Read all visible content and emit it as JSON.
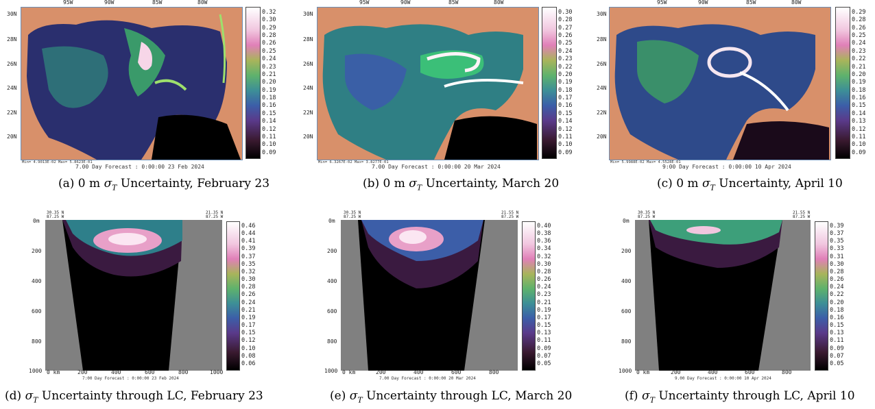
{
  "panels": [
    {
      "id": "a",
      "caption_prefix": "(a) 0 m",
      "caption_suffix": "Uncertainty, February 23",
      "footer": "7.00 Day Forecast :  0:00:00  23 Feb 2024",
      "minmax": "Min= 4.9013E-02  Max= 5.8623E-01",
      "cbar": [
        "0.32",
        "0.30",
        "0.29",
        "0.28",
        "0.26",
        "0.25",
        "0.24",
        "0.23",
        "0.21",
        "0.20",
        "0.19",
        "0.18",
        "0.16",
        "0.15",
        "0.14",
        "0.12",
        "0.11",
        "0.10",
        "0.09"
      ]
    },
    {
      "id": "b",
      "caption_prefix": "(b) 0 m",
      "caption_suffix": "Uncertainty, March 20",
      "footer": "7.00 Day Forecast :  0:00:00  20 Mar 2024",
      "minmax": "Min= 6.3267E-02  Max= 3.8277E-01",
      "cbar": [
        "0.30",
        "0.28",
        "0.27",
        "0.26",
        "0.25",
        "0.24",
        "0.23",
        "0.22",
        "0.20",
        "0.19",
        "0.18",
        "0.17",
        "0.16",
        "0.15",
        "0.14",
        "0.12",
        "0.11",
        "0.10",
        "0.09"
      ]
    },
    {
      "id": "c",
      "caption_prefix": "(c) 0 m",
      "caption_suffix": "Uncertainty, April 10",
      "footer": "9:00 Day Forecast :  0:00:00  10 Apr 2024",
      "minmax": "Min= 5.9988E-02  Max= 4.5528E-01",
      "cbar": [
        "0.29",
        "0.28",
        "0.26",
        "0.25",
        "0.24",
        "0.23",
        "0.22",
        "0.21",
        "0.20",
        "0.19",
        "0.18",
        "0.16",
        "0.15",
        "0.14",
        "0.13",
        "0.12",
        "0.11",
        "0.10",
        "0.09"
      ]
    },
    {
      "id": "d",
      "caption_prefix": "(d)",
      "caption_suffix": "Uncertainty through LC, February 23",
      "footer": "7:00 Day Forecast :  0:00:00  23 Feb 2024",
      "corner_left": "30.35 N\n87.25 W",
      "corner_right": "21.35 N\n87.25 W",
      "x_ticks": [
        "0 km",
        "200",
        "400",
        "600",
        "800",
        "1000"
      ],
      "y_ticks": [
        "0m",
        "200",
        "400",
        "600",
        "800",
        "1000"
      ],
      "cbar": [
        "0.46",
        "0.44",
        "0.41",
        "0.39",
        "0.37",
        "0.35",
        "0.32",
        "0.30",
        "0.28",
        "0.26",
        "0.24",
        "0.21",
        "0.19",
        "0.17",
        "0.15",
        "0.12",
        "0.10",
        "0.08",
        "0.06"
      ]
    },
    {
      "id": "e",
      "caption_prefix": "(e)",
      "caption_suffix": "Uncertainty through LC, March 20",
      "footer": "7.00 Day Forecast :  0:00:00  20 Mar 2024",
      "corner_left": "30.35 N\n87.25 W",
      "corner_right": "21.55 N\n87.25 W",
      "x_ticks": [
        "0 km",
        "200",
        "400",
        "600",
        "800"
      ],
      "y_ticks": [
        "0m",
        "200",
        "400",
        "600",
        "800",
        "1000"
      ],
      "cbar": [
        "0.40",
        "0.38",
        "0.36",
        "0.34",
        "0.32",
        "0.30",
        "0.28",
        "0.26",
        "0.24",
        "0.23",
        "0.21",
        "0.19",
        "0.17",
        "0.15",
        "0.13",
        "0.11",
        "0.09",
        "0.07",
        "0.05"
      ]
    },
    {
      "id": "f",
      "caption_prefix": "(f)",
      "caption_suffix": "Uncertainty through LC, April 10",
      "footer": "9.00 Day Forecast :  0:00:00  10 Apr 2024",
      "corner_left": "30.35 N\n87.25 W",
      "corner_right": "21.55 N\n87.25 W",
      "x_ticks": [
        "0 km",
        "200",
        "400",
        "600",
        "800"
      ],
      "y_ticks": [
        "0m",
        "200",
        "400",
        "600",
        "800",
        "1000"
      ],
      "cbar": [
        "0.39",
        "0.37",
        "0.35",
        "0.33",
        "0.31",
        "0.30",
        "0.28",
        "0.26",
        "0.24",
        "0.22",
        "0.20",
        "0.18",
        "0.16",
        "0.15",
        "0.13",
        "0.11",
        "0.09",
        "0.07",
        "0.05"
      ]
    }
  ],
  "map_lon_ticks": [
    "95W",
    "90W",
    "85W",
    "80W"
  ],
  "map_lat_ticks": [
    "30N",
    "28N",
    "26N",
    "24N",
    "22N",
    "20N"
  ],
  "sigma_symbol": "σ",
  "sigma_sub": "T",
  "colors": {
    "land": "#d8906a",
    "section_land": "#808080",
    "black": "#000000"
  }
}
